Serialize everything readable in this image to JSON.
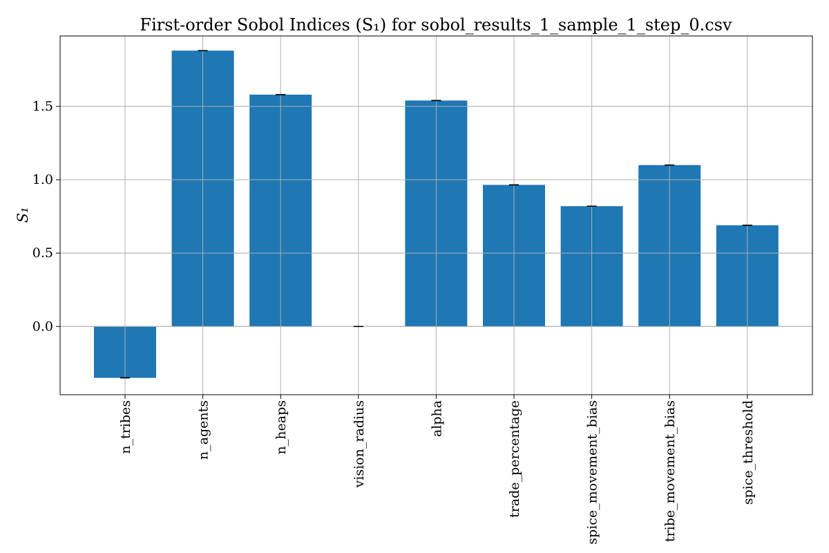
{
  "colors": {
    "bar": "#1f77b4",
    "grid": "#b0b0b0",
    "axis": "#000000",
    "error_cap": "#000000",
    "background": "#ffffff"
  },
  "chart_data": {
    "type": "bar",
    "title": "First-order Sobol Indices (S₁) for sobol_results_1_sample_1_step_0.csv",
    "xlabel": "",
    "ylabel": "S₁",
    "categories": [
      "n_tribes",
      "n_agents",
      "n_heaps",
      "vision_radius",
      "alpha",
      "trade_percentage",
      "spice_movement_bias",
      "tribe_movement_bias",
      "spice_threshold"
    ],
    "values": [
      -0.35,
      1.88,
      1.58,
      0.0,
      1.54,
      0.965,
      0.82,
      1.1,
      0.69
    ],
    "errors": [
      0.0,
      0.0,
      0.0,
      0.0,
      0.0,
      0.0,
      0.0,
      0.0,
      0.0
    ],
    "ylim": [
      -0.465,
      1.98
    ],
    "yticks": [
      0.0,
      0.5,
      1.0,
      1.5
    ],
    "ytick_labels": [
      "0.0",
      "0.5",
      "1.0",
      "1.5"
    ],
    "grid": true,
    "legend": "none"
  }
}
